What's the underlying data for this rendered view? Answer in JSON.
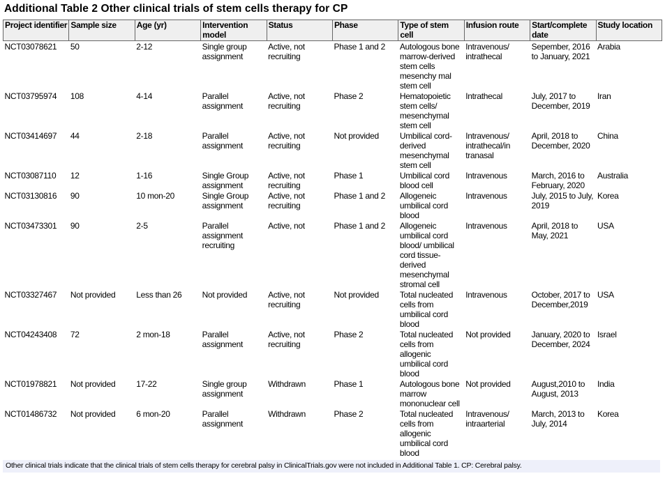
{
  "title": "Additional Table 2 Other clinical trials of stem cells therapy for CP",
  "headers": [
    "Project identifier",
    "Sample size",
    "Age (yr)",
    "Intervention model",
    "Status",
    "Phase",
    "Type of stem cell",
    "Infusion route",
    "Start/complete date",
    "Study location"
  ],
  "rows": [
    [
      "NCT03078621",
      "50",
      "2-12",
      "Single group assignment",
      "Active, not recruiting",
      "Phase 1 and 2",
      "Autologous bone marrow-derived stem cells mesenchy mal stem cell",
      "Intravenous/ intrathecal",
      "Sepember, 2016 to January, 2021",
      "Arabia"
    ],
    [
      "NCT03795974",
      "108",
      "4-14",
      "Parallel assignment",
      "Active, not recruiting",
      "Phase 2",
      "Hematopoietic stem cells/ mesenchymal stem cell",
      "Intrathecal",
      "July, 2017 to December, 2019",
      "Iran"
    ],
    [
      "NCT03414697",
      "44",
      "2-18",
      "Parallel assignment",
      "Active, not recruiting",
      "Not provided",
      "Umbilical cord-derived mesenchymal stem cell",
      "Intravenous/ intrathecal/in tranasal",
      "April, 2018 to December, 2020",
      "China"
    ],
    [
      "NCT03087110",
      "12",
      "1-16",
      "Single Group assignment",
      "Active, not recruiting",
      "Phase 1",
      "Umbilical cord blood cell",
      "Intravenous",
      "March, 2016 to February, 2020",
      "Australia"
    ],
    [
      "NCT03130816",
      "90",
      "10 mon-20",
      "Single Group assignment",
      "Active, not recruiting",
      "Phase 1 and 2",
      "Allogeneic umbilical cord blood",
      "Intravenous",
      "July, 2015 to July, 2019",
      "Korea"
    ],
    [
      "NCT03473301",
      "90",
      "2-5",
      "Parallel assignment recruiting",
      "Active, not",
      "Phase 1 and 2",
      "Allogeneic umbilical cord blood/ umbilical cord tissue-derived mesenchymal stromal cell",
      "Intravenous",
      "April, 2018 to May, 2021",
      "USA"
    ],
    [
      "NCT03327467",
      "Not provided",
      "Less than 26",
      "Not provided",
      "Active, not recruiting",
      "Not provided",
      "Total nucleated cells from umbilical cord blood",
      "Intravenous",
      "October, 2017 to December,2019",
      "USA"
    ],
    [
      "NCT04243408",
      "72",
      "2 mon-18",
      "Parallel assignment",
      "Active, not recruiting",
      "Phase 2",
      "Total nucleated cells from allogenic umbilical cord blood",
      "Not provided",
      "January, 2020 to December, 2024",
      "Israel"
    ],
    [
      "NCT01978821",
      "Not provided",
      "17-22",
      "Single group assignment",
      "Withdrawn",
      "Phase 1",
      "Autologous bone marrow mononuclear cell",
      "Not provided",
      "August,2010 to August, 2013",
      "India"
    ],
    [
      "NCT01486732",
      "Not provided",
      "6 mon-20",
      "Parallel assignment",
      "Withdrawn",
      "Phase 2",
      "Total nucleated cells from allogenic umbilical cord blood",
      "Intravenous/ intraarterial",
      "March, 2013 to July, 2014",
      "Korea"
    ]
  ],
  "footnote": "Other clinical trials indicate that the clinical trials of stem cells therapy for cerebral palsy in ClinicalTrials.gov were not included in Additional Table 1. CP: Cerebral palsy."
}
